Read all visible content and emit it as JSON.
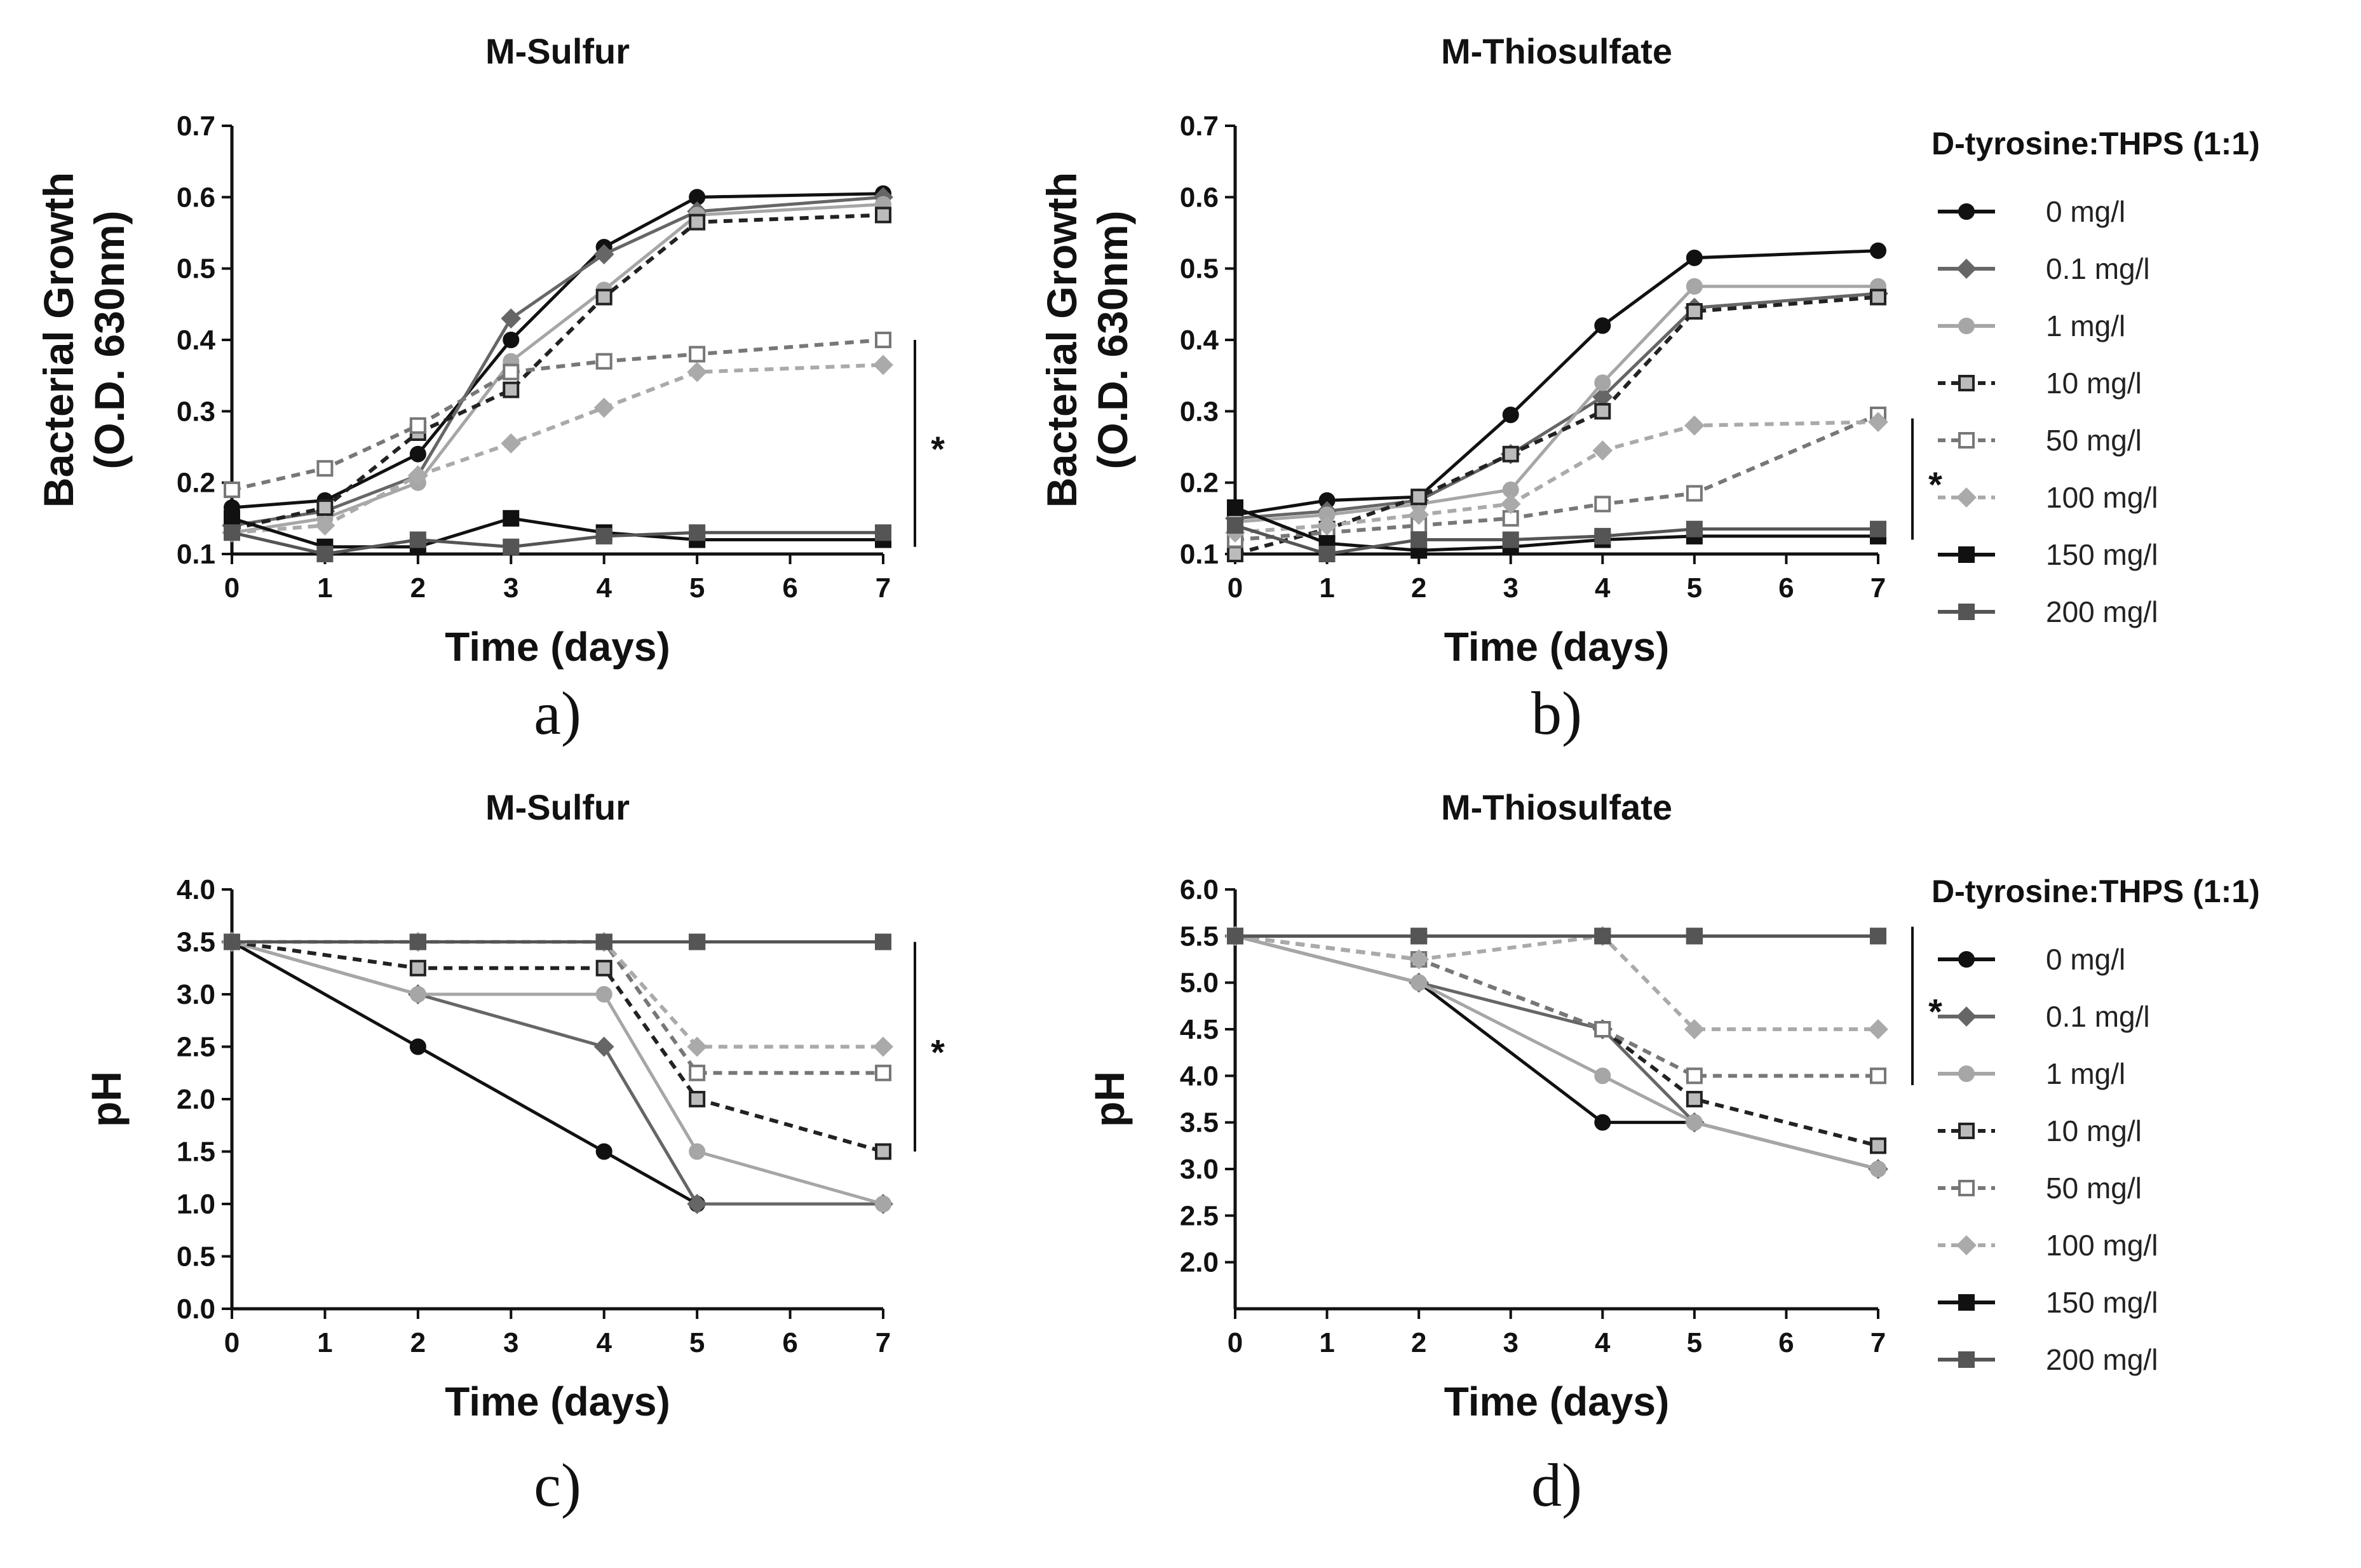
{
  "figure": {
    "legend_title": "D-tyrosine:THPS (1:1)",
    "series_styles": [
      {
        "name": "0 mg/l",
        "color": "#111111",
        "dash": "",
        "marker": "circle",
        "fill": "solid"
      },
      {
        "name": "0.1 mg/l",
        "color": "#666666",
        "dash": "",
        "marker": "diamond",
        "fill": "solid"
      },
      {
        "name": "1 mg/l",
        "color": "#a6a6a6",
        "dash": "",
        "marker": "circle",
        "fill": "solid"
      },
      {
        "name": "10 mg/l",
        "color": "#222222",
        "dash": "14,10",
        "marker": "square",
        "fill": "dark-open"
      },
      {
        "name": "50 mg/l",
        "color": "#777777",
        "dash": "14,10",
        "marker": "square",
        "fill": "open"
      },
      {
        "name": "100 mg/l",
        "color": "#aaaaaa",
        "dash": "14,10",
        "marker": "diamond",
        "fill": "solid"
      },
      {
        "name": "150 mg/l",
        "color": "#111111",
        "dash": "",
        "marker": "square",
        "fill": "solid"
      },
      {
        "name": "200 mg/l",
        "color": "#555555",
        "dash": "",
        "marker": "square",
        "fill": "solid"
      }
    ]
  },
  "chart_data": [
    {
      "panel": "a)",
      "type": "line",
      "title": "M-Sulfur",
      "ylabel": [
        "Bacterial Growth",
        "(O.D. 630nm)"
      ],
      "xlabel": "Time (days)",
      "xlim": [
        0,
        7
      ],
      "ylim": [
        0.1,
        0.7
      ],
      "xticks": [
        0,
        1,
        2,
        3,
        4,
        5,
        6,
        7
      ],
      "yticks": [
        0.1,
        0.2,
        0.3,
        0.4,
        0.5,
        0.6,
        0.7
      ],
      "ytick_labels": [
        "0.1",
        "0.2",
        "0.3",
        "0.4",
        "0.5",
        "0.6",
        "0.7"
      ],
      "significance": {
        "label": "*",
        "y_range": [
          0.11,
          0.4
        ]
      },
      "legend": false,
      "series": [
        {
          "name": "0 mg/l",
          "x": [
            0,
            1,
            2,
            3,
            4,
            5,
            7
          ],
          "y": [
            0.165,
            0.175,
            0.24,
            0.4,
            0.53,
            0.6,
            0.605
          ]
        },
        {
          "name": "0.1 mg/l",
          "x": [
            0,
            1,
            2,
            3,
            4,
            5,
            7
          ],
          "y": [
            0.14,
            0.16,
            0.21,
            0.43,
            0.52,
            0.58,
            0.6
          ]
        },
        {
          "name": "1 mg/l",
          "x": [
            0,
            1,
            2,
            3,
            4,
            5,
            7
          ],
          "y": [
            0.13,
            0.15,
            0.2,
            0.37,
            0.47,
            0.575,
            0.59
          ]
        },
        {
          "name": "10 mg/l",
          "x": [
            0,
            1,
            2,
            3,
            4,
            5,
            7
          ],
          "y": [
            0.135,
            0.165,
            0.27,
            0.33,
            0.46,
            0.565,
            0.575
          ]
        },
        {
          "name": "50 mg/l",
          "x": [
            0,
            1,
            2,
            3,
            4,
            5,
            7
          ],
          "y": [
            0.19,
            0.22,
            0.28,
            0.355,
            0.37,
            0.38,
            0.4
          ]
        },
        {
          "name": "100 mg/l",
          "x": [
            0,
            1,
            2,
            3,
            4,
            5,
            7
          ],
          "y": [
            0.13,
            0.14,
            0.21,
            0.255,
            0.305,
            0.355,
            0.365
          ]
        },
        {
          "name": "150 mg/l",
          "x": [
            0,
            1,
            2,
            3,
            4,
            5,
            7
          ],
          "y": [
            0.15,
            0.11,
            0.11,
            0.15,
            0.13,
            0.12,
            0.12
          ]
        },
        {
          "name": "200 mg/l",
          "x": [
            0,
            1,
            2,
            3,
            4,
            5,
            7
          ],
          "y": [
            0.13,
            0.1,
            0.12,
            0.11,
            0.125,
            0.13,
            0.13
          ]
        }
      ]
    },
    {
      "panel": "b)",
      "type": "line",
      "title": "M-Thiosulfate",
      "ylabel": [
        "Bacterial Growth",
        "(O.D. 630nm)"
      ],
      "xlabel": "Time (days)",
      "xlim": [
        0,
        7
      ],
      "ylim": [
        0.1,
        0.7
      ],
      "xticks": [
        0,
        1,
        2,
        3,
        4,
        5,
        6,
        7
      ],
      "yticks": [
        0.1,
        0.2,
        0.3,
        0.4,
        0.5,
        0.6,
        0.7
      ],
      "ytick_labels": [
        "0.1",
        "0.2",
        "0.3",
        "0.4",
        "0.5",
        "0.6",
        "0.7"
      ],
      "significance": {
        "label": "*",
        "y_range": [
          0.12,
          0.29
        ]
      },
      "legend": true,
      "series": [
        {
          "name": "0 mg/l",
          "x": [
            0,
            1,
            2,
            3,
            4,
            5,
            7
          ],
          "y": [
            0.155,
            0.175,
            0.18,
            0.295,
            0.42,
            0.515,
            0.525
          ]
        },
        {
          "name": "0.1 mg/l",
          "x": [
            0,
            1,
            2,
            3,
            4,
            5,
            7
          ],
          "y": [
            0.15,
            0.16,
            0.175,
            0.24,
            0.32,
            0.445,
            0.465
          ]
        },
        {
          "name": "1 mg/l",
          "x": [
            0,
            1,
            2,
            3,
            4,
            5,
            7
          ],
          "y": [
            0.145,
            0.155,
            0.17,
            0.19,
            0.34,
            0.475,
            0.475
          ]
        },
        {
          "name": "10 mg/l",
          "x": [
            0,
            1,
            2,
            3,
            4,
            5,
            7
          ],
          "y": [
            0.1,
            0.135,
            0.18,
            0.24,
            0.3,
            0.44,
            0.46
          ]
        },
        {
          "name": "50 mg/l",
          "x": [
            0,
            1,
            2,
            3,
            4,
            5,
            7
          ],
          "y": [
            0.12,
            0.13,
            0.14,
            0.15,
            0.17,
            0.185,
            0.295
          ]
        },
        {
          "name": "100 mg/l",
          "x": [
            0,
            1,
            2,
            3,
            4,
            5,
            7
          ],
          "y": [
            0.13,
            0.14,
            0.155,
            0.17,
            0.245,
            0.28,
            0.285
          ]
        },
        {
          "name": "150 mg/l",
          "x": [
            0,
            1,
            2,
            3,
            4,
            5,
            7
          ],
          "y": [
            0.165,
            0.115,
            0.105,
            0.11,
            0.12,
            0.125,
            0.125
          ]
        },
        {
          "name": "200 mg/l",
          "x": [
            0,
            1,
            2,
            3,
            4,
            5,
            7
          ],
          "y": [
            0.14,
            0.1,
            0.12,
            0.12,
            0.125,
            0.135,
            0.135
          ]
        }
      ]
    },
    {
      "panel": "c)",
      "type": "line",
      "title": "M-Sulfur",
      "ylabel": [
        "pH"
      ],
      "xlabel": "Time (days)",
      "xlim": [
        0,
        7
      ],
      "ylim": [
        0,
        4
      ],
      "xticks": [
        0,
        1,
        2,
        3,
        4,
        5,
        6,
        7
      ],
      "yticks": [
        0,
        0.5,
        1,
        1.5,
        2,
        2.5,
        3,
        3.5,
        4
      ],
      "ytick_labels": [
        "0.0",
        "0.5",
        "1.0",
        "1.5",
        "2.0",
        "2.5",
        "3.0",
        "3.5",
        "4.0"
      ],
      "significance": {
        "label": "*",
        "y_range": [
          1.5,
          3.5
        ]
      },
      "legend": false,
      "series": [
        {
          "name": "0 mg/l",
          "x": [
            0,
            2,
            4,
            5,
            7
          ],
          "y": [
            3.5,
            2.5,
            1.5,
            1.0,
            1.0
          ]
        },
        {
          "name": "0.1 mg/l",
          "x": [
            0,
            2,
            4,
            5,
            7
          ],
          "y": [
            3.5,
            3.0,
            2.5,
            1.0,
            1.0
          ]
        },
        {
          "name": "1 mg/l",
          "x": [
            0,
            2,
            4,
            5,
            7
          ],
          "y": [
            3.5,
            3.0,
            3.0,
            1.5,
            1.0
          ]
        },
        {
          "name": "10 mg/l",
          "x": [
            0,
            2,
            4,
            5,
            7
          ],
          "y": [
            3.5,
            3.25,
            3.25,
            2.0,
            1.5
          ]
        },
        {
          "name": "50 mg/l",
          "x": [
            0,
            2,
            4,
            5,
            7
          ],
          "y": [
            3.5,
            3.5,
            3.5,
            2.25,
            2.25
          ]
        },
        {
          "name": "100 mg/l",
          "x": [
            0,
            2,
            4,
            5,
            7
          ],
          "y": [
            3.5,
            3.5,
            3.5,
            2.5,
            2.5
          ]
        },
        {
          "name": "150 mg/l",
          "x": [
            0,
            2,
            4,
            5,
            7
          ],
          "y": [
            3.5,
            3.5,
            3.5,
            3.5,
            3.5
          ]
        },
        {
          "name": "200 mg/l",
          "x": [
            0,
            2,
            4,
            5,
            7
          ],
          "y": [
            3.5,
            3.5,
            3.5,
            3.5,
            3.5
          ]
        }
      ]
    },
    {
      "panel": "d)",
      "type": "line",
      "title": "M-Thiosulfate",
      "ylabel": [
        "pH"
      ],
      "xlabel": "Time (days)",
      "xlim": [
        0,
        7
      ],
      "ylim": [
        1.5,
        6.0
      ],
      "xticks": [
        0,
        1,
        2,
        3,
        4,
        5,
        6,
        7
      ],
      "yticks": [
        2,
        2.5,
        3,
        3.5,
        4,
        4.5,
        5,
        5.5,
        6
      ],
      "ytick_labels": [
        "2.0",
        "2.5",
        "3.0",
        "3.5",
        "4.0",
        "4.5",
        "5.0",
        "5.5",
        "6.0"
      ],
      "significance": {
        "label": "*",
        "y_range": [
          3.9,
          5.6
        ]
      },
      "legend": true,
      "series": [
        {
          "name": "0 mg/l",
          "x": [
            0,
            2,
            4,
            5,
            7
          ],
          "y": [
            5.5,
            5.0,
            3.5,
            3.5,
            3.0
          ]
        },
        {
          "name": "0.1 mg/l",
          "x": [
            0,
            2,
            4,
            5,
            7
          ],
          "y": [
            5.5,
            5.0,
            4.5,
            3.5,
            3.0
          ]
        },
        {
          "name": "1 mg/l",
          "x": [
            0,
            2,
            4,
            5,
            7
          ],
          "y": [
            5.5,
            5.0,
            4.0,
            3.5,
            3.0
          ]
        },
        {
          "name": "10 mg/l",
          "x": [
            0,
            2,
            4,
            5,
            7
          ],
          "y": [
            5.5,
            5.25,
            4.5,
            3.75,
            3.25
          ]
        },
        {
          "name": "50 mg/l",
          "x": [
            0,
            2,
            4,
            5,
            7
          ],
          "y": [
            5.5,
            5.25,
            4.5,
            4.0,
            4.0
          ]
        },
        {
          "name": "100 mg/l",
          "x": [
            0,
            2,
            4,
            5,
            7
          ],
          "y": [
            5.5,
            5.25,
            5.5,
            4.5,
            4.5
          ]
        },
        {
          "name": "150 mg/l",
          "x": [
            0,
            2,
            4,
            5,
            7
          ],
          "y": [
            5.5,
            5.5,
            5.5,
            5.5,
            5.5
          ]
        },
        {
          "name": "200 mg/l",
          "x": [
            0,
            2,
            4,
            5,
            7
          ],
          "y": [
            5.5,
            5.5,
            5.5,
            5.5,
            5.5
          ]
        }
      ]
    }
  ]
}
